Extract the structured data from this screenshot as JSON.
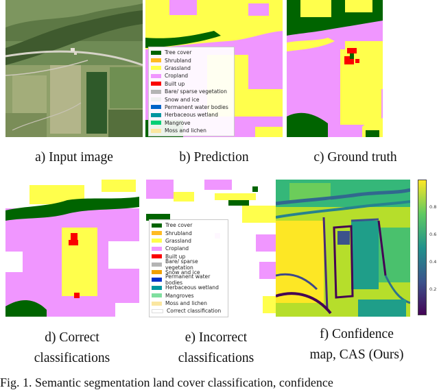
{
  "captions": {
    "a": "a) Input image",
    "b": "b) Prediction",
    "c": "c) Ground truth",
    "d_line1": "d) Correct",
    "d_line2": "classifications",
    "e_line1": "e) Incorrect",
    "e_line2": "classifications",
    "f_line1": "f) Confidence",
    "f_line2": "map, CAS (Ours)"
  },
  "legend_b": [
    {
      "label": "Tree cover",
      "color": "#006400"
    },
    {
      "label": "Shrubland",
      "color": "#ffbb22"
    },
    {
      "label": "Grassland",
      "color": "#ffff4c"
    },
    {
      "label": "Cropland",
      "color": "#f096ff"
    },
    {
      "label": "Built up",
      "color": "#fa0000"
    },
    {
      "label": "Bare/ sparse vegetation",
      "color": "#b4b4b4"
    },
    {
      "label": "Snow and ice",
      "color": "#f0f0f0"
    },
    {
      "label": "Permanent water bodies",
      "color": "#0064c8"
    },
    {
      "label": "Herbaceous wetland",
      "color": "#0096a0"
    },
    {
      "label": "Mangrove",
      "color": "#00cf75"
    },
    {
      "label": "Moss and lichen",
      "color": "#fae6a0"
    }
  ],
  "legend_e": [
    {
      "label": "Tree cover",
      "color": "#006400"
    },
    {
      "label": "Shrubland",
      "color": "#ffbb22"
    },
    {
      "label": "Grassland",
      "color": "#ffff4c"
    },
    {
      "label": "Cropland",
      "color": "#f096ff"
    },
    {
      "label": "Built up",
      "color": "#fa0000"
    },
    {
      "label": "Bare/ sparse vegetation",
      "color": "#b4b4b4"
    },
    {
      "label": "Snow and ice",
      "color": "#f0f0f0"
    },
    {
      "label": "Permanent water bodies",
      "color": "#0064c8"
    },
    {
      "label": "Herbaceous wetland",
      "color": "#0096a0"
    },
    {
      "label": "Mangroves",
      "color": "#00cf75"
    },
    {
      "label": "Moss and lichen",
      "color": "#fae6a0"
    },
    {
      "label": "Correct classification",
      "color": "#ffffff"
    }
  ],
  "colorbar_ticks": [
    "0.8",
    "0.6",
    "0.4",
    "0.2"
  ],
  "figure_caption": "Fig. 1.  Semantic segmentation land cover classification, confidence"
}
